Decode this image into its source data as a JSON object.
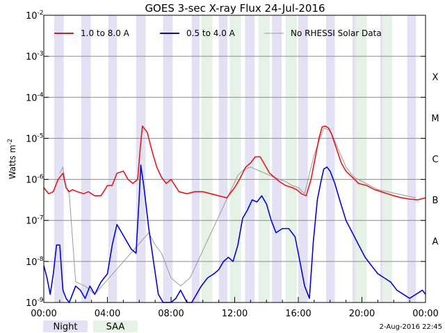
{
  "chart_data": {
    "type": "line",
    "title": "GOES 3-sec X-ray Flux   24-Jul-2016",
    "ylabel_base": "Watts m",
    "ylabel_exp": "-2",
    "yscale": "log",
    "ylim_exp": [
      -9,
      -2
    ],
    "grid": "horizontal",
    "y_ticks": [
      {
        "base": "10",
        "exp": "-9"
      },
      {
        "base": "10",
        "exp": "-8"
      },
      {
        "base": "10",
        "exp": "-7"
      },
      {
        "base": "10",
        "exp": "-6"
      },
      {
        "base": "10",
        "exp": "-5"
      },
      {
        "base": "10",
        "exp": "-4"
      },
      {
        "base": "10",
        "exp": "-3"
      },
      {
        "base": "10",
        "exp": "-2"
      }
    ],
    "x_ticks": [
      "00:00",
      "04:00",
      "08:00",
      "12:00",
      "16:00",
      "20:00",
      "00:00"
    ],
    "x_hours_range": [
      0,
      24
    ],
    "flare_classes": [
      {
        "label": "A",
        "exp": -8
      },
      {
        "label": "B",
        "exp": -7
      },
      {
        "label": "C",
        "exp": -6
      },
      {
        "label": "M",
        "exp": -5
      },
      {
        "label": "X",
        "exp": -4
      }
    ],
    "legend_position": "top",
    "series": [
      {
        "name": "1.0 to 8.0 A",
        "color": "#e8141a",
        "x": [
          0.0,
          0.3,
          0.6,
          0.9,
          1.2,
          1.4,
          1.6,
          1.8,
          2.1,
          2.5,
          2.8,
          3.2,
          3.6,
          4.0,
          4.3,
          4.6,
          5.0,
          5.3,
          5.6,
          5.9,
          6.05,
          6.2,
          6.5,
          6.8,
          7.1,
          7.4,
          7.7,
          8.0,
          8.5,
          9.0,
          9.5,
          10.0,
          10.5,
          11.0,
          11.5,
          12.0,
          12.3,
          12.5,
          12.7,
          13.0,
          13.3,
          13.6,
          13.9,
          14.2,
          14.5,
          14.8,
          15.2,
          15.6,
          15.9,
          16.2,
          16.5,
          16.8,
          17.1,
          17.3,
          17.5,
          17.7,
          17.9,
          18.1,
          18.4,
          18.7,
          19.0,
          19.4,
          19.8,
          20.3,
          20.8,
          21.2,
          21.6,
          22.0,
          22.5,
          23.0,
          23.5,
          24.0
        ],
        "y_exp": [
          -6.2,
          -6.35,
          -6.3,
          -6.0,
          -5.85,
          -6.2,
          -6.3,
          -6.25,
          -6.3,
          -6.35,
          -6.3,
          -6.4,
          -6.4,
          -6.15,
          -6.15,
          -5.85,
          -5.8,
          -6.0,
          -6.1,
          -6.0,
          -5.3,
          -4.7,
          -4.85,
          -5.3,
          -5.7,
          -5.95,
          -6.1,
          -6.0,
          -6.3,
          -6.35,
          -6.3,
          -6.3,
          -6.35,
          -6.4,
          -6.45,
          -6.2,
          -6.0,
          -5.85,
          -5.7,
          -5.6,
          -5.45,
          -5.45,
          -5.65,
          -5.85,
          -5.95,
          -6.05,
          -6.15,
          -6.2,
          -6.25,
          -6.35,
          -6.4,
          -6.0,
          -5.4,
          -5.0,
          -4.72,
          -4.7,
          -4.75,
          -4.9,
          -5.25,
          -5.6,
          -5.8,
          -5.95,
          -6.1,
          -6.15,
          -6.25,
          -6.3,
          -6.35,
          -6.4,
          -6.45,
          -6.48,
          -6.5,
          -6.45
        ]
      },
      {
        "name": "0.5 to 4.0 A",
        "color": "#0000e6",
        "x": [
          0.0,
          0.2,
          0.4,
          0.6,
          0.8,
          1.0,
          1.2,
          1.4,
          1.6,
          1.8,
          2.0,
          2.3,
          2.6,
          2.9,
          3.2,
          3.6,
          4.0,
          4.3,
          4.6,
          4.9,
          5.2,
          5.5,
          5.8,
          6.0,
          6.1,
          6.3,
          6.6,
          6.9,
          7.2,
          7.5,
          7.8,
          8.0,
          8.3,
          8.6,
          9.0,
          9.3,
          9.6,
          9.9,
          10.3,
          10.7,
          11.0,
          11.3,
          11.6,
          11.9,
          12.2,
          12.5,
          12.8,
          13.1,
          13.4,
          13.7,
          14.0,
          14.3,
          14.6,
          15.0,
          15.4,
          15.8,
          16.1,
          16.4,
          16.7,
          16.95,
          17.2,
          17.4,
          17.6,
          17.8,
          18.0,
          18.3,
          18.6,
          19.0,
          19.4,
          19.8,
          20.2,
          20.6,
          21.0,
          21.4,
          21.8,
          22.2,
          22.6,
          23.0,
          23.4,
          23.8,
          24.0
        ],
        "y_exp": [
          -8.1,
          -8.4,
          -8.8,
          -8.3,
          -7.6,
          -7.6,
          -8.7,
          -8.9,
          -9.0,
          -8.8,
          -8.6,
          -8.7,
          -8.9,
          -8.6,
          -8.8,
          -8.5,
          -8.3,
          -7.6,
          -7.1,
          -7.3,
          -7.5,
          -7.7,
          -7.8,
          -6.4,
          -5.65,
          -6.2,
          -7.2,
          -8.0,
          -8.8,
          -9.0,
          -9.0,
          -9.0,
          -8.9,
          -8.7,
          -9.0,
          -9.0,
          -8.8,
          -8.6,
          -8.4,
          -8.3,
          -8.2,
          -8.0,
          -7.9,
          -8.0,
          -7.6,
          -6.95,
          -6.75,
          -6.5,
          -6.55,
          -6.4,
          -6.6,
          -7.0,
          -7.3,
          -7.2,
          -7.2,
          -7.4,
          -8.0,
          -8.6,
          -8.9,
          -7.5,
          -6.5,
          -6.1,
          -5.75,
          -5.7,
          -5.8,
          -6.1,
          -6.5,
          -7.0,
          -7.3,
          -7.6,
          -7.9,
          -8.1,
          -8.3,
          -8.4,
          -8.5,
          -8.7,
          -8.8,
          -8.9,
          -8.8,
          -8.7,
          -8.8
        ]
      },
      {
        "name": "No RHESSI Solar Data",
        "color": "#999999",
        "x": [
          1.0,
          1.2,
          1.4,
          1.6,
          2.0,
          2.6,
          3.2,
          6.6,
          7.0,
          7.4,
          8.0,
          8.6,
          9.2,
          12.2,
          12.6,
          13.0,
          14.2,
          14.8,
          15.2,
          15.6,
          16.0,
          16.4,
          17.0,
          17.6,
          18.0,
          18.5,
          19.0,
          19.5,
          20.0,
          20.5,
          21.0,
          21.6,
          22.2,
          22.8,
          23.4
        ],
        "y_exp": [
          -5.85,
          -5.7,
          -6.2,
          -6.35,
          -8.5,
          -8.6,
          -8.8,
          -7.3,
          -7.6,
          -7.8,
          -8.4,
          -8.6,
          -8.4,
          -5.9,
          -5.75,
          -5.7,
          -5.9,
          -6.0,
          -6.05,
          -6.15,
          -6.2,
          -6.35,
          -5.4,
          -4.75,
          -4.8,
          -5.25,
          -5.7,
          -5.95,
          -6.05,
          -6.15,
          -6.25,
          -6.3,
          -6.35,
          -6.4,
          -6.45
        ]
      }
    ],
    "night_bands": [
      [
        0.65,
        1.25
      ],
      [
        2.35,
        2.95
      ],
      [
        4.05,
        4.6
      ],
      [
        5.8,
        6.4
      ],
      [
        7.5,
        8.1
      ],
      [
        9.3,
        9.8
      ],
      [
        11.0,
        11.55
      ],
      [
        12.65,
        13.25
      ],
      [
        14.35,
        14.95
      ],
      [
        16.0,
        16.6
      ],
      [
        17.75,
        18.3
      ],
      [
        19.4,
        20.0
      ],
      [
        21.15,
        21.7
      ],
      [
        22.85,
        23.4
      ]
    ],
    "saa_bands": [
      [
        9.9,
        10.6
      ],
      [
        11.7,
        12.4
      ],
      [
        13.5,
        14.2
      ],
      [
        15.2,
        15.9
      ],
      [
        19.6,
        20.3
      ],
      [
        21.3,
        21.9
      ]
    ],
    "key": {
      "night": "Night",
      "saa": "SAA"
    },
    "timestamp": "2-Aug-2016 22:45"
  }
}
